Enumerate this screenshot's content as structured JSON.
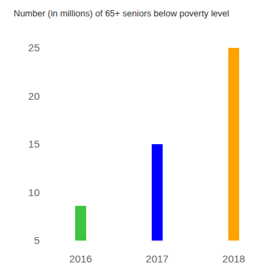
{
  "chart_data": {
    "type": "bar",
    "title": "Number (in millions) of 65+ seniors below poverty level",
    "categories": [
      "2016",
      "2017",
      "2018"
    ],
    "values": [
      8.6,
      15,
      25
    ],
    "colors": [
      "#3ec43e",
      "#0000ff",
      "#ffa500"
    ],
    "ylim": [
      5,
      25
    ],
    "yticks": [
      5,
      10,
      15,
      20,
      25
    ],
    "grid": false
  }
}
